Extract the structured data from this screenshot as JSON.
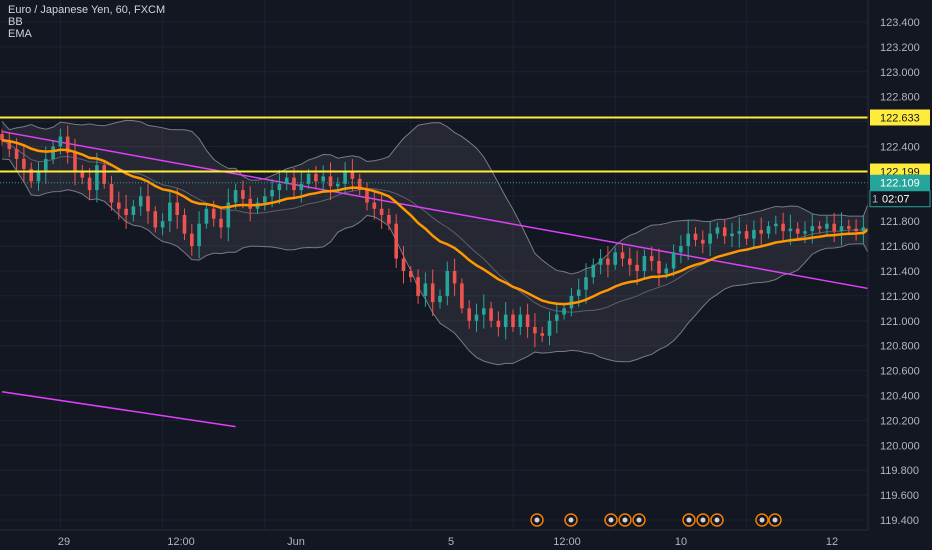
{
  "legend": {
    "title": "Euro / Japanese Yen, 60, FXCM",
    "indicators": [
      "BB",
      "EMA"
    ]
  },
  "price_tags": {
    "level_high": "122.633",
    "level_mid": "122.199",
    "last_price": "122.109",
    "countdown": "02:07",
    "countdown_prefix": "1"
  },
  "chart_data": {
    "type": "candlestick",
    "symbol": "EURJPY",
    "timeframe": "60",
    "source": "FXCM",
    "y_axis": {
      "ylim": [
        119.3,
        123.55
      ],
      "ticks": [
        "123.400",
        "123.200",
        "123.000",
        "122.800",
        "122.600",
        "122.400",
        "122.200",
        "122.000",
        "121.800",
        "121.600",
        "121.400",
        "121.200",
        "121.000",
        "120.800",
        "120.600",
        "120.400",
        "120.200",
        "120.000",
        "119.800",
        "119.600",
        "119.400"
      ],
      "tick_values": [
        123.4,
        123.2,
        123.0,
        122.8,
        122.6,
        122.4,
        122.2,
        122.0,
        121.8,
        121.6,
        121.4,
        121.2,
        121.0,
        120.8,
        120.6,
        120.4,
        120.2,
        120.0,
        119.8,
        119.6,
        119.4
      ]
    },
    "x_axis": {
      "ticks": [
        "29",
        "12:00",
        "Jun",
        "5",
        "12:00",
        "10",
        "12"
      ],
      "tick_index": [
        16,
        44,
        72,
        112,
        140,
        168,
        204
      ],
      "bar_count": 228
    },
    "horizontal_levels": [
      {
        "value": 122.633,
        "color": "#ffeb3b"
      },
      {
        "value": 122.199,
        "color": "#ffeb3b"
      }
    ],
    "last_price": 122.109,
    "trendlines": [
      {
        "color": "#e040fb",
        "points": [
          [
            0,
            122.52
          ],
          [
            165,
            121.26
          ]
        ]
      },
      {
        "color": "#e040fb",
        "points": [
          [
            0,
            120.43
          ],
          [
            32,
            120.15
          ]
        ]
      }
    ],
    "arrow": {
      "color": "#f23645",
      "from": [
        129,
        122.07
      ],
      "to": [
        136,
        121.85
      ]
    },
    "candles_close": [
      122.45,
      122.38,
      122.3,
      122.22,
      122.12,
      122.2,
      122.3,
      122.4,
      122.48,
      122.35,
      122.2,
      122.15,
      122.05,
      122.25,
      122.1,
      121.95,
      121.9,
      121.85,
      121.92,
      122.0,
      121.88,
      121.75,
      121.8,
      121.95,
      121.85,
      121.7,
      121.6,
      121.78,
      121.9,
      121.82,
      121.75,
      121.95,
      122.05,
      121.98,
      121.9,
      121.95,
      122.0,
      122.05,
      122.1,
      122.15,
      122.05,
      122.1,
      122.18,
      122.12,
      122.16,
      122.08,
      122.1,
      122.2,
      122.14,
      122.05,
      121.95,
      121.9,
      121.85,
      121.78,
      121.5,
      121.4,
      121.35,
      121.2,
      121.3,
      121.15,
      121.2,
      121.4,
      121.3,
      121.1,
      121.0,
      121.05,
      121.1,
      121.0,
      120.95,
      121.05,
      120.95,
      121.05,
      120.95,
      120.9,
      120.88,
      121.0,
      121.05,
      121.1,
      121.2,
      121.25,
      121.35,
      121.45,
      121.5,
      121.45,
      121.55,
      121.5,
      121.45,
      121.4,
      121.52,
      121.48,
      121.38,
      121.42,
      121.55,
      121.6,
      121.7,
      121.65,
      121.62,
      121.7,
      121.75,
      121.68,
      121.7,
      121.72,
      121.66,
      121.73,
      121.7,
      121.76,
      121.78,
      121.72,
      121.74,
      121.7,
      121.72,
      121.76,
      121.74,
      121.78,
      121.72,
      121.76,
      121.74,
      121.72,
      121.75,
      122.15
    ],
    "bars": [
      {
        "name": "BB",
        "color": "#787b86"
      },
      {
        "name": "EMA",
        "color": "#ff9800"
      }
    ],
    "event_markers_count": 10
  }
}
